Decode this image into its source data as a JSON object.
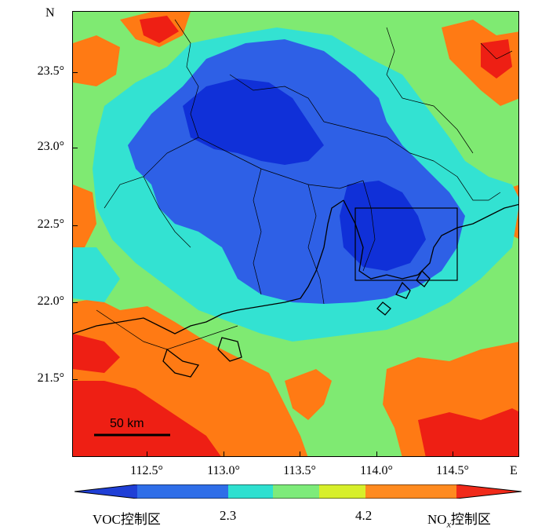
{
  "map": {
    "north_label": "N",
    "east_label": "E",
    "lat_ticks": [
      "23.5°",
      "23.0°",
      "22.5°",
      "22.0°",
      "21.5°"
    ],
    "lon_ticks": [
      "112.5°",
      "113.0°",
      "113.5°",
      "114.0°",
      "114.5°"
    ],
    "scale_bar_label": "50 km"
  },
  "colorbar": {
    "left_label": "VOC控制区",
    "mid_label_1": "2.3",
    "mid_label_2": "4.2",
    "right_label_prefix": "NO",
    "right_label_sub": "x",
    "right_label_suffix": "控制区",
    "colors": [
      "#1f3fd6",
      "#2f6ee8",
      "#2ee0d0",
      "#7deb7a",
      "#d7ef2a",
      "#ff8a1f",
      "#f02a1a"
    ]
  },
  "palette": {
    "deep_blue": "#1030d8",
    "blue": "#2e60e6",
    "cyan": "#33e2d2",
    "green": "#7fea72",
    "orange": "#ff7a14",
    "red": "#ee1f14"
  }
}
